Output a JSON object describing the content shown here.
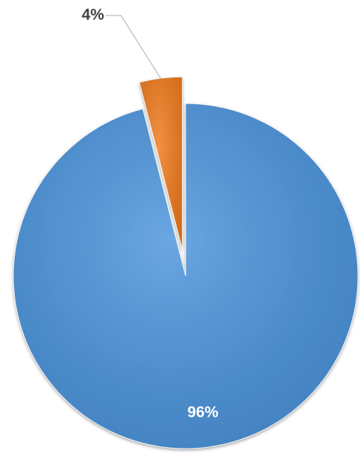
{
  "chart_data": {
    "type": "pie",
    "values": [
      96,
      4
    ],
    "value_labels": [
      "96%",
      "4%"
    ],
    "colors": [
      "#4a93dc",
      "#f07a1c"
    ],
    "exploded": [
      false,
      true
    ]
  }
}
